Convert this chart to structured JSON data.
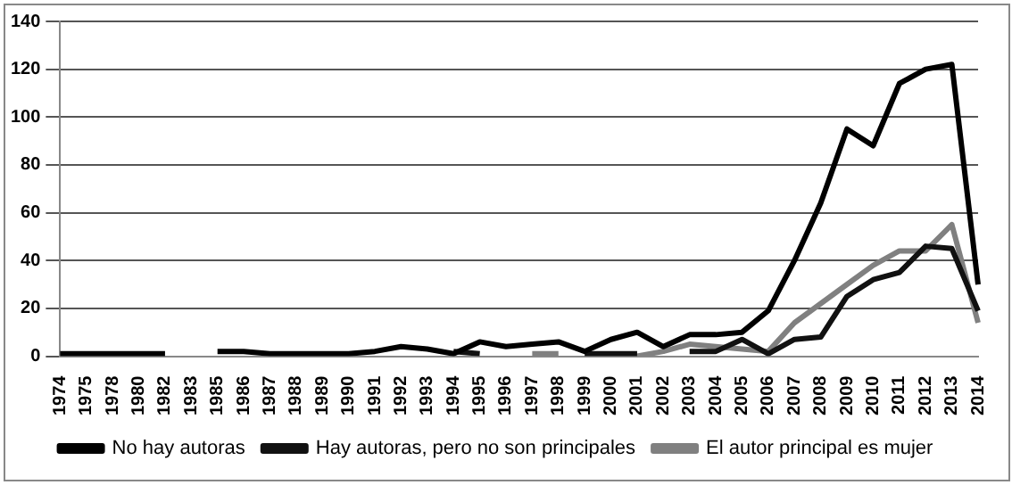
{
  "chart_data": {
    "type": "line",
    "categories": [
      "1974",
      "1975",
      "1978",
      "1980",
      "1982",
      "1983",
      "1985",
      "1986",
      "1987",
      "1988",
      "1989",
      "1990",
      "1991",
      "1992",
      "1993",
      "1994",
      "1995",
      "1996",
      "1997",
      "1998",
      "1999",
      "2000",
      "2001",
      "2002",
      "2003",
      "2004",
      "2005",
      "2006",
      "2007",
      "2008",
      "2009",
      "2010",
      "2011",
      "2012",
      "2013",
      "2014"
    ],
    "series": [
      {
        "name": "No hay autoras",
        "color": "#000000",
        "values": [
          1,
          1,
          1,
          1,
          1,
          null,
          2,
          2,
          1,
          1,
          1,
          1,
          2,
          4,
          3,
          1,
          6,
          4,
          5,
          6,
          2,
          7,
          10,
          4,
          9,
          9,
          10,
          19,
          40,
          64,
          95,
          88,
          114,
          120,
          122,
          30
        ]
      },
      {
        "name": "Hay autoras, pero no son principales",
        "color": "#111111",
        "values": [
          null,
          null,
          null,
          null,
          null,
          null,
          null,
          null,
          null,
          null,
          null,
          null,
          null,
          null,
          null,
          2,
          1,
          null,
          null,
          null,
          1,
          1,
          1,
          null,
          2,
          2,
          7,
          1,
          7,
          8,
          25,
          32,
          35,
          46,
          45,
          19
        ]
      },
      {
        "name": "El autor principal es mujer",
        "color": "#808080",
        "values": [
          null,
          null,
          null,
          null,
          null,
          null,
          null,
          null,
          null,
          null,
          null,
          null,
          null,
          null,
          null,
          null,
          null,
          null,
          1,
          1,
          null,
          null,
          0,
          2,
          5,
          4,
          3,
          2,
          14,
          22,
          30,
          38,
          44,
          44,
          55,
          14
        ]
      }
    ],
    "ylim": [
      0,
      140
    ],
    "yticks": [
      0,
      20,
      40,
      60,
      80,
      100,
      120,
      140
    ],
    "grid": "y",
    "legend": "bottom",
    "marker": "none",
    "line_style": "solid"
  }
}
